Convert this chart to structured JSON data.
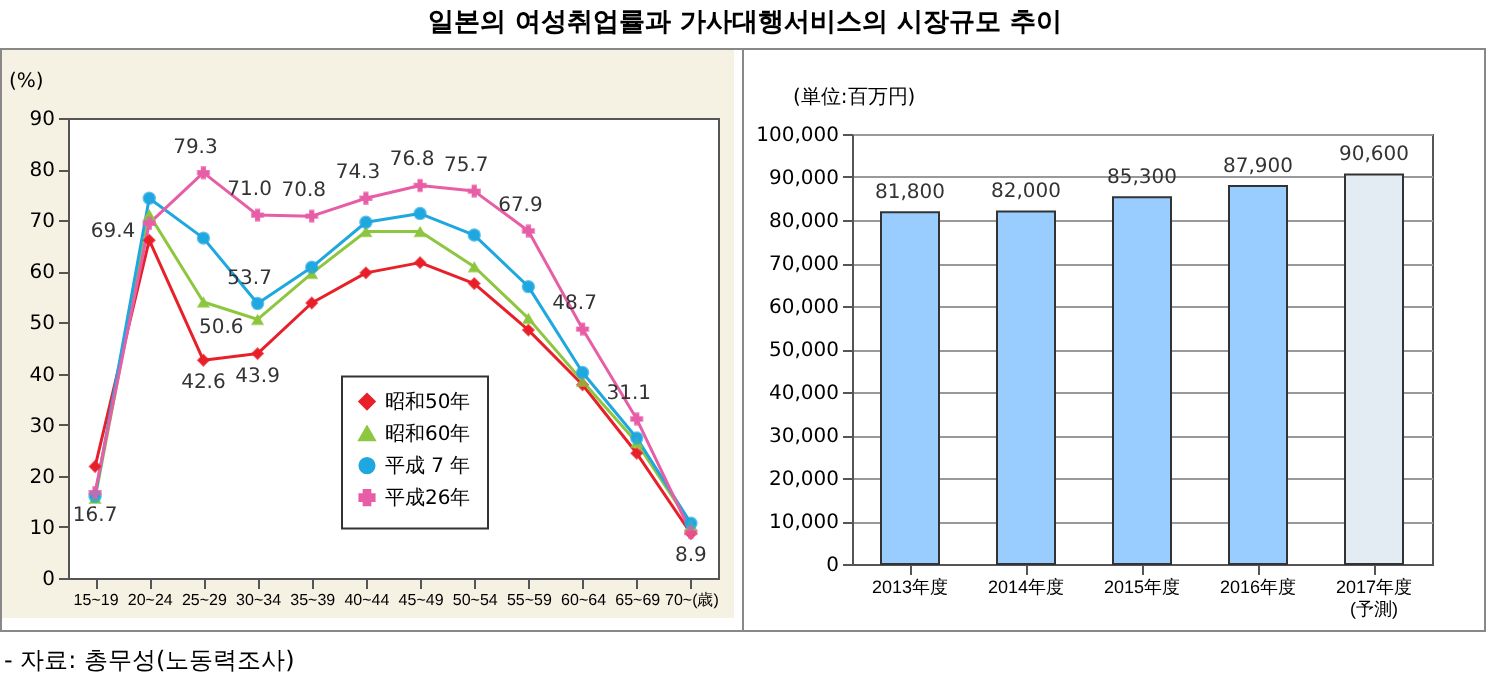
{
  "chart_data": [
    {
      "type": "line",
      "title": "일본의 여성취업률과 가사대행서비스의 시장규모 추이",
      "ylabel": "(%)",
      "annotations": [
        "- 자료: 총무성(노동력조사)"
      ],
      "categories": [
        "15~19",
        "20~24",
        "25~29",
        "30~34",
        "35~39",
        "40~44",
        "45~49",
        "50~54",
        "55~59",
        "60~64",
        "65~69",
        "70~(歳)"
      ],
      "ylim": [
        0,
        90
      ],
      "yticks": [
        0,
        10,
        20,
        30,
        40,
        50,
        60,
        70,
        80,
        90
      ],
      "grid": false,
      "legend": "bottom",
      "series": [
        {
          "name": "昭和50年",
          "color": "#e8202a",
          "marker": "diamond",
          "values": [
            21.8,
            66.1,
            42.6,
            43.9,
            53.8,
            59.7,
            61.7,
            57.6,
            48.5,
            37.8,
            24.4,
            8.7
          ],
          "value_labels": [
            null,
            null,
            "42.6",
            "43.9",
            null,
            null,
            null,
            null,
            null,
            null,
            null,
            null
          ]
        },
        {
          "name": "昭和60年",
          "color": "#8dc63f",
          "marker": "triangle",
          "values": [
            15.6,
            71.1,
            54.0,
            50.6,
            59.6,
            67.8,
            67.8,
            60.9,
            50.8,
            38.5,
            26.5,
            10.4
          ],
          "value_labels": [
            null,
            null,
            null,
            "50.6",
            null,
            null,
            null,
            null,
            null,
            null,
            null,
            null
          ]
        },
        {
          "name": "平成 7 年",
          "color": "#1fa7e0",
          "marker": "circle",
          "values": [
            16.0,
            74.3,
            66.5,
            53.7,
            60.8,
            69.6,
            71.3,
            67.1,
            57.0,
            40.2,
            27.4,
            10.7
          ],
          "value_labels": [
            null,
            null,
            null,
            "53.7",
            null,
            null,
            null,
            null,
            null,
            null,
            null,
            null
          ]
        },
        {
          "name": "平成26年",
          "color": "#e75ea6",
          "marker": "cross",
          "values": [
            16.7,
            69.4,
            79.3,
            71.0,
            70.8,
            74.3,
            76.8,
            75.7,
            67.9,
            48.7,
            31.1,
            8.9
          ],
          "value_labels": [
            "16.7",
            "69.4",
            "79.3",
            "71.0",
            "70.8",
            "74.3",
            "76.8",
            "75.7",
            "67.9",
            "48.7",
            "31.1",
            "8.9"
          ]
        }
      ]
    },
    {
      "type": "bar",
      "ylabel": "(単位:百万円)",
      "categories": [
        "2013年度",
        "2014年度",
        "2015年度",
        "2016年度",
        "2017年度\n(予測)"
      ],
      "values": [
        81800,
        82000,
        85300,
        87900,
        90600
      ],
      "colors": [
        "#99ccff",
        "#99ccff",
        "#99ccff",
        "#99ccff",
        "#e4ecf3"
      ],
      "value_labels": [
        "81,800",
        "82,000",
        "85,300",
        "87,900",
        "90,600"
      ],
      "ylim": [
        0,
        100000
      ],
      "yticks": [
        0,
        {
          "value": 10000,
          "label": "10,000"
        },
        {
          "value": 20000,
          "label": "20,000"
        },
        {
          "value": 30000,
          "label": "30,000"
        },
        {
          "value": 40000,
          "label": "40,000"
        },
        {
          "value": 50000,
          "label": "50,000"
        },
        {
          "value": 60000,
          "label": "60,000"
        },
        {
          "value": 70000,
          "label": "70,000"
        },
        {
          "value": 80000,
          "label": "80,000"
        },
        {
          "value": 90000,
          "label": "90,000"
        },
        {
          "value": 100000,
          "label": "100,000"
        }
      ],
      "grid": "y"
    }
  ]
}
